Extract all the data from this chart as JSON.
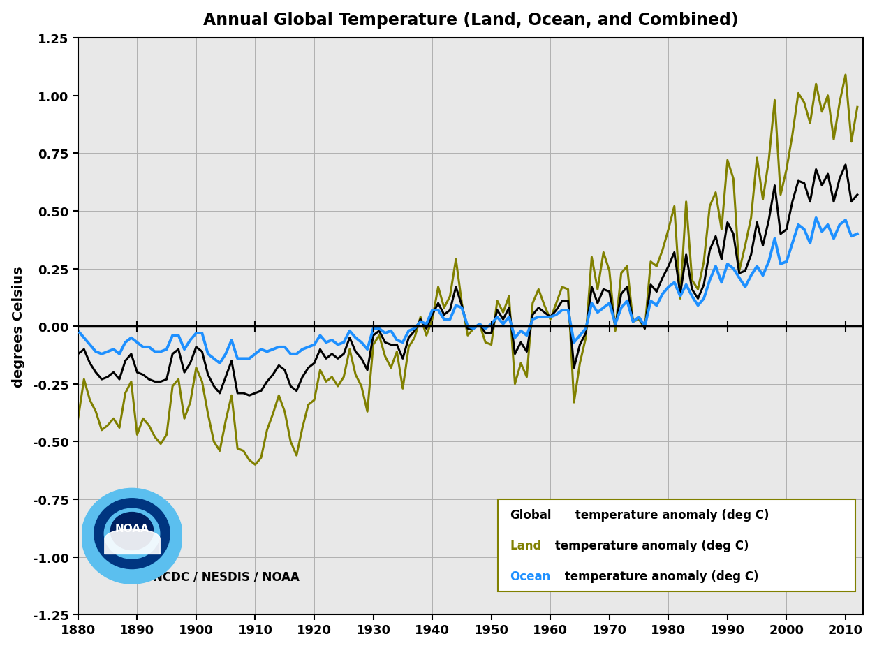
{
  "title": "Annual Global Temperature (Land, Ocean, and Combined)",
  "ylabel": "degrees Celsius",
  "xlim": [
    1880,
    2013
  ],
  "ylim": [
    -1.25,
    1.25
  ],
  "yticks": [
    -1.25,
    -1.0,
    -0.75,
    -0.5,
    -0.25,
    0.0,
    0.25,
    0.5,
    0.75,
    1.0,
    1.25
  ],
  "xticks": [
    1880,
    1890,
    1900,
    1910,
    1920,
    1930,
    1940,
    1950,
    1960,
    1970,
    1980,
    1990,
    2000,
    2010
  ],
  "global_color": "#000000",
  "land_color": "#808000",
  "ocean_color": "#1E90FF",
  "plot_bg_color": "#e8e8e8",
  "fig_bg_color": "#ffffff",
  "global_lw": 2.2,
  "land_lw": 2.2,
  "ocean_lw": 2.8,
  "legend_global": "Global temperature anomaly (deg C)",
  "legend_land": "Land temperature anomaly (deg C)",
  "legend_ocean": "Ocean temperature anomaly (deg C)",
  "watermark_text": "NCDC / NESDIS / NOAA",
  "years": [
    1880,
    1881,
    1882,
    1883,
    1884,
    1885,
    1886,
    1887,
    1888,
    1889,
    1890,
    1891,
    1892,
    1893,
    1894,
    1895,
    1896,
    1897,
    1898,
    1899,
    1900,
    1901,
    1902,
    1903,
    1904,
    1905,
    1906,
    1907,
    1908,
    1909,
    1910,
    1911,
    1912,
    1913,
    1914,
    1915,
    1916,
    1917,
    1918,
    1919,
    1920,
    1921,
    1922,
    1923,
    1924,
    1925,
    1926,
    1927,
    1928,
    1929,
    1930,
    1931,
    1932,
    1933,
    1934,
    1935,
    1936,
    1937,
    1938,
    1939,
    1940,
    1941,
    1942,
    1943,
    1944,
    1945,
    1946,
    1947,
    1948,
    1949,
    1950,
    1951,
    1952,
    1953,
    1954,
    1955,
    1956,
    1957,
    1958,
    1959,
    1960,
    1961,
    1962,
    1963,
    1964,
    1965,
    1966,
    1967,
    1968,
    1969,
    1970,
    1971,
    1972,
    1973,
    1974,
    1975,
    1976,
    1977,
    1978,
    1979,
    1980,
    1981,
    1982,
    1983,
    1984,
    1985,
    1986,
    1987,
    1988,
    1989,
    1990,
    1991,
    1992,
    1993,
    1994,
    1995,
    1996,
    1997,
    1998,
    1999,
    2000,
    2001,
    2002,
    2003,
    2004,
    2005,
    2006,
    2007,
    2008,
    2009,
    2010,
    2011,
    2012
  ],
  "global": [
    -0.12,
    -0.1,
    -0.16,
    -0.2,
    -0.23,
    -0.22,
    -0.2,
    -0.23,
    -0.15,
    -0.12,
    -0.2,
    -0.21,
    -0.23,
    -0.24,
    -0.24,
    -0.23,
    -0.12,
    -0.1,
    -0.2,
    -0.16,
    -0.09,
    -0.11,
    -0.21,
    -0.26,
    -0.29,
    -0.22,
    -0.15,
    -0.29,
    -0.29,
    -0.3,
    -0.29,
    -0.28,
    -0.24,
    -0.21,
    -0.17,
    -0.19,
    -0.26,
    -0.28,
    -0.22,
    -0.18,
    -0.16,
    -0.1,
    -0.14,
    -0.12,
    -0.14,
    -0.12,
    -0.05,
    -0.11,
    -0.14,
    -0.19,
    -0.04,
    -0.02,
    -0.07,
    -0.08,
    -0.08,
    -0.14,
    -0.05,
    -0.02,
    0.03,
    -0.01,
    0.05,
    0.1,
    0.05,
    0.07,
    0.17,
    0.09,
    -0.01,
    -0.01,
    0.01,
    -0.03,
    -0.03,
    0.07,
    0.03,
    0.08,
    -0.12,
    -0.07,
    -0.11,
    0.05,
    0.08,
    0.06,
    0.04,
    0.07,
    0.11,
    0.11,
    -0.18,
    -0.08,
    -0.03,
    0.17,
    0.1,
    0.16,
    0.15,
    0.0,
    0.14,
    0.17,
    0.02,
    0.04,
    -0.01,
    0.18,
    0.15,
    0.21,
    0.26,
    0.32,
    0.14,
    0.31,
    0.16,
    0.12,
    0.18,
    0.33,
    0.39,
    0.29,
    0.45,
    0.4,
    0.23,
    0.24,
    0.31,
    0.45,
    0.35,
    0.46,
    0.61,
    0.4,
    0.42,
    0.54,
    0.63,
    0.62,
    0.54,
    0.68,
    0.61,
    0.66,
    0.54,
    0.64,
    0.7,
    0.54,
    0.57
  ],
  "land": [
    -0.4,
    -0.23,
    -0.32,
    -0.37,
    -0.45,
    -0.43,
    -0.4,
    -0.44,
    -0.29,
    -0.24,
    -0.47,
    -0.4,
    -0.43,
    -0.48,
    -0.51,
    -0.47,
    -0.26,
    -0.23,
    -0.4,
    -0.33,
    -0.18,
    -0.24,
    -0.38,
    -0.5,
    -0.54,
    -0.41,
    -0.3,
    -0.53,
    -0.54,
    -0.58,
    -0.6,
    -0.57,
    -0.45,
    -0.38,
    -0.3,
    -0.37,
    -0.5,
    -0.56,
    -0.44,
    -0.34,
    -0.32,
    -0.19,
    -0.24,
    -0.22,
    -0.26,
    -0.22,
    -0.1,
    -0.21,
    -0.26,
    -0.37,
    -0.08,
    -0.04,
    -0.13,
    -0.18,
    -0.11,
    -0.27,
    -0.09,
    -0.05,
    0.04,
    -0.04,
    0.03,
    0.17,
    0.08,
    0.13,
    0.29,
    0.1,
    -0.04,
    -0.01,
    0.01,
    -0.07,
    -0.08,
    0.11,
    0.06,
    0.13,
    -0.25,
    -0.16,
    -0.22,
    0.1,
    0.16,
    0.09,
    0.03,
    0.1,
    0.17,
    0.16,
    -0.33,
    -0.16,
    -0.05,
    0.3,
    0.16,
    0.32,
    0.24,
    -0.02,
    0.23,
    0.26,
    0.02,
    0.03,
    -0.01,
    0.28,
    0.26,
    0.33,
    0.42,
    0.52,
    0.12,
    0.54,
    0.2,
    0.16,
    0.28,
    0.52,
    0.58,
    0.42,
    0.72,
    0.64,
    0.24,
    0.35,
    0.47,
    0.73,
    0.55,
    0.72,
    0.98,
    0.57,
    0.68,
    0.83,
    1.01,
    0.97,
    0.88,
    1.05,
    0.93,
    1.0,
    0.81,
    0.97,
    1.09,
    0.8,
    0.95
  ],
  "ocean": [
    -0.02,
    -0.05,
    -0.08,
    -0.11,
    -0.12,
    -0.11,
    -0.1,
    -0.12,
    -0.07,
    -0.05,
    -0.07,
    -0.09,
    -0.09,
    -0.11,
    -0.11,
    -0.1,
    -0.04,
    -0.04,
    -0.1,
    -0.06,
    -0.03,
    -0.03,
    -0.12,
    -0.14,
    -0.16,
    -0.12,
    -0.06,
    -0.14,
    -0.14,
    -0.14,
    -0.12,
    -0.1,
    -0.11,
    -0.1,
    -0.09,
    -0.09,
    -0.12,
    -0.12,
    -0.1,
    -0.09,
    -0.08,
    -0.04,
    -0.07,
    -0.06,
    -0.08,
    -0.07,
    -0.02,
    -0.05,
    -0.07,
    -0.1,
    -0.01,
    -0.01,
    -0.03,
    -0.02,
    -0.06,
    -0.07,
    -0.02,
    -0.01,
    0.02,
    0.01,
    0.07,
    0.07,
    0.03,
    0.03,
    0.09,
    0.08,
    0.0,
    -0.01,
    0.01,
    -0.01,
    0.01,
    0.04,
    0.01,
    0.04,
    -0.05,
    -0.02,
    -0.04,
    0.03,
    0.04,
    0.04,
    0.04,
    0.05,
    0.07,
    0.07,
    -0.07,
    -0.04,
    -0.01,
    0.1,
    0.06,
    0.08,
    0.1,
    0.01,
    0.08,
    0.11,
    0.02,
    0.04,
    0.0,
    0.11,
    0.09,
    0.14,
    0.17,
    0.19,
    0.13,
    0.18,
    0.13,
    0.09,
    0.12,
    0.2,
    0.26,
    0.19,
    0.27,
    0.25,
    0.21,
    0.17,
    0.22,
    0.26,
    0.22,
    0.28,
    0.38,
    0.27,
    0.28,
    0.36,
    0.44,
    0.42,
    0.36,
    0.47,
    0.41,
    0.44,
    0.38,
    0.44,
    0.46,
    0.39,
    0.4
  ]
}
